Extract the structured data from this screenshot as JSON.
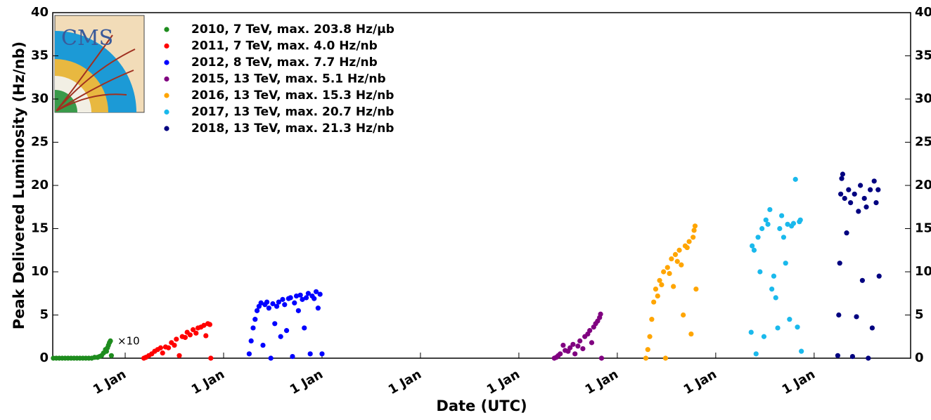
{
  "chart_data": {
    "type": "scatter",
    "ylabel": "Peak Delivered Luminosity (Hz/nb)",
    "xlabel": "Date (UTC)",
    "annotation": "×10",
    "logo_text": "CMS",
    "xlim": [
      2010.264,
      2018.98
    ],
    "ylim": [
      0,
      40
    ],
    "y2lim": [
      0,
      40
    ],
    "yticks": [
      0,
      5,
      10,
      15,
      20,
      25,
      30,
      35,
      40
    ],
    "y2ticks": [
      0,
      5,
      10,
      15,
      20,
      25,
      30,
      35,
      40
    ],
    "xticks": [
      {
        "value": 2011,
        "label": "1 Jan"
      },
      {
        "value": 2012,
        "label": "1 Jan"
      },
      {
        "value": 2013,
        "label": "1 Jan"
      },
      {
        "value": 2014,
        "label": "1 Jan"
      },
      {
        "value": 2015,
        "label": "1 Jan"
      },
      {
        "value": 2016,
        "label": "1 Jan"
      },
      {
        "value": 2017,
        "label": "1 Jan"
      },
      {
        "value": 2018,
        "label": "1 Jan"
      }
    ],
    "legend": "upper left",
    "series": [
      {
        "name": "2010, 7 TeV, max. 203.8 Hz/μb",
        "color": "#1e8c1e",
        "x": [
          2010.27,
          2010.3,
          2010.33,
          2010.36,
          2010.39,
          2010.42,
          2010.45,
          2010.48,
          2010.51,
          2010.54,
          2010.57,
          2010.6,
          2010.63,
          2010.66,
          2010.69,
          2010.72,
          2010.74,
          2010.76,
          2010.78,
          2010.8,
          2010.81,
          2010.82,
          2010.83,
          2010.84,
          2010.85,
          2010.86
        ],
        "values": [
          0,
          0,
          0,
          0,
          0,
          0,
          0,
          0,
          0,
          0,
          0,
          0,
          0,
          0,
          0.1,
          0.1,
          0.2,
          0.3,
          0.6,
          1.0,
          0.8,
          1.2,
          1.5,
          1.8,
          2.0,
          0.3
        ]
      },
      {
        "name": "2011, 7 TeV, max. 4.0 Hz/nb",
        "color": "#ff0000",
        "x": [
          2011.19,
          2011.21,
          2011.24,
          2011.27,
          2011.3,
          2011.33,
          2011.36,
          2011.38,
          2011.41,
          2011.44,
          2011.47,
          2011.5,
          2011.52,
          2011.55,
          2011.58,
          2011.61,
          2011.63,
          2011.66,
          2011.69,
          2011.72,
          2011.74,
          2011.77,
          2011.8,
          2011.82,
          2011.84,
          2011.86,
          2011.87
        ],
        "values": [
          0,
          0.1,
          0.3,
          0.5,
          0.8,
          1.0,
          1.2,
          0.6,
          1.3,
          1.2,
          1.8,
          1.5,
          2.2,
          0.3,
          2.5,
          2.4,
          3.0,
          2.7,
          3.3,
          2.9,
          3.5,
          3.6,
          3.8,
          2.6,
          4.0,
          3.9,
          0
        ]
      },
      {
        "name": "2012, 8 TeV, max. 7.7 Hz/nb",
        "color": "#0000ff",
        "x": [
          2012.26,
          2012.28,
          2012.3,
          2012.32,
          2012.34,
          2012.36,
          2012.38,
          2012.4,
          2012.42,
          2012.44,
          2012.46,
          2012.48,
          2012.5,
          2012.52,
          2012.54,
          2012.56,
          2012.58,
          2012.6,
          2012.62,
          2012.64,
          2012.66,
          2012.68,
          2012.7,
          2012.72,
          2012.74,
          2012.76,
          2012.78,
          2012.8,
          2012.82,
          2012.84,
          2012.86,
          2012.88,
          2012.9,
          2012.92,
          2012.94,
          2012.96,
          2012.98,
          2013.0
        ],
        "values": [
          0.5,
          2,
          3.5,
          4.5,
          5.5,
          6.0,
          6.4,
          1.5,
          6.2,
          6.5,
          5.8,
          0,
          6.3,
          4.0,
          6.0,
          6.5,
          2.5,
          6.8,
          6.2,
          3.2,
          6.9,
          7.0,
          0.2,
          6.4,
          7.2,
          5.5,
          7.3,
          6.8,
          3.5,
          7.0,
          7.5,
          0.5,
          7.2,
          6.9,
          7.7,
          5.8,
          7.4,
          0.5
        ]
      },
      {
        "name": "2015, 13 TeV, max. 5.1 Hz/nb",
        "color": "#800080",
        "x": [
          2015.36,
          2015.38,
          2015.4,
          2015.42,
          2015.45,
          2015.47,
          2015.5,
          2015.52,
          2015.55,
          2015.57,
          2015.6,
          2015.62,
          2015.65,
          2015.67,
          2015.7,
          2015.72,
          2015.74,
          2015.76,
          2015.78,
          2015.8,
          2015.82,
          2015.83,
          2015.84
        ],
        "values": [
          0,
          0.1,
          0.3,
          0.5,
          1.5,
          0.9,
          0.8,
          1.2,
          1.6,
          0.5,
          1.4,
          2.0,
          1.1,
          2.5,
          2.8,
          3.2,
          1.8,
          3.6,
          4.0,
          4.3,
          4.7,
          5.1,
          0
        ]
      },
      {
        "name": "2016, 13 TeV, max. 15.3 Hz/nb",
        "color": "#ffa500",
        "x": [
          2016.29,
          2016.31,
          2016.33,
          2016.35,
          2016.37,
          2016.39,
          2016.41,
          2016.43,
          2016.45,
          2016.47,
          2016.49,
          2016.51,
          2016.53,
          2016.55,
          2016.57,
          2016.59,
          2016.61,
          2016.63,
          2016.65,
          2016.67,
          2016.69,
          2016.71,
          2016.73,
          2016.75,
          2016.77,
          2016.78,
          2016.79,
          2016.8
        ],
        "values": [
          0,
          1,
          2.5,
          4.5,
          6.5,
          8,
          7.2,
          9,
          8.5,
          10,
          0,
          10.5,
          9.8,
          11.5,
          8.3,
          12,
          11.2,
          12.5,
          10.8,
          5,
          13,
          12.8,
          13.5,
          2.8,
          14,
          14.8,
          15.3,
          8
        ]
      },
      {
        "name": "2017, 13 TeV, max. 20.7 Hz/nb",
        "color": "#1ab9ec",
        "x": [
          2017.36,
          2017.37,
          2017.39,
          2017.41,
          2017.43,
          2017.45,
          2017.47,
          2017.49,
          2017.51,
          2017.53,
          2017.55,
          2017.57,
          2017.59,
          2017.61,
          2017.63,
          2017.65,
          2017.67,
          2017.69,
          2017.71,
          2017.73,
          2017.75,
          2017.77,
          2017.79,
          2017.81,
          2017.83,
          2017.85,
          2017.86,
          2017.87
        ],
        "values": [
          3,
          13,
          12.5,
          0.5,
          14,
          10,
          15,
          2.5,
          16,
          15.5,
          17.2,
          8,
          9.5,
          7,
          3.5,
          15,
          16.5,
          14,
          11,
          15.5,
          4.5,
          15.3,
          15.6,
          20.7,
          3.6,
          15.8,
          16,
          0.8
        ]
      },
      {
        "name": "2018, 13 TeV, max. 21.3 Hz/nb",
        "color": "#000080",
        "x": [
          2018.24,
          2018.25,
          2018.26,
          2018.27,
          2018.28,
          2018.29,
          2018.31,
          2018.33,
          2018.35,
          2018.37,
          2018.39,
          2018.41,
          2018.43,
          2018.45,
          2018.47,
          2018.49,
          2018.51,
          2018.53,
          2018.55,
          2018.57,
          2018.59,
          2018.61,
          2018.63,
          2018.65,
          2018.66
        ],
        "values": [
          0.3,
          5,
          11,
          19,
          20.8,
          21.3,
          18.5,
          14.5,
          19.5,
          18,
          0.2,
          19,
          4.8,
          17,
          20,
          9,
          18.5,
          17.5,
          0,
          19.5,
          3.5,
          20.5,
          18,
          19.5,
          9.5
        ]
      }
    ]
  }
}
